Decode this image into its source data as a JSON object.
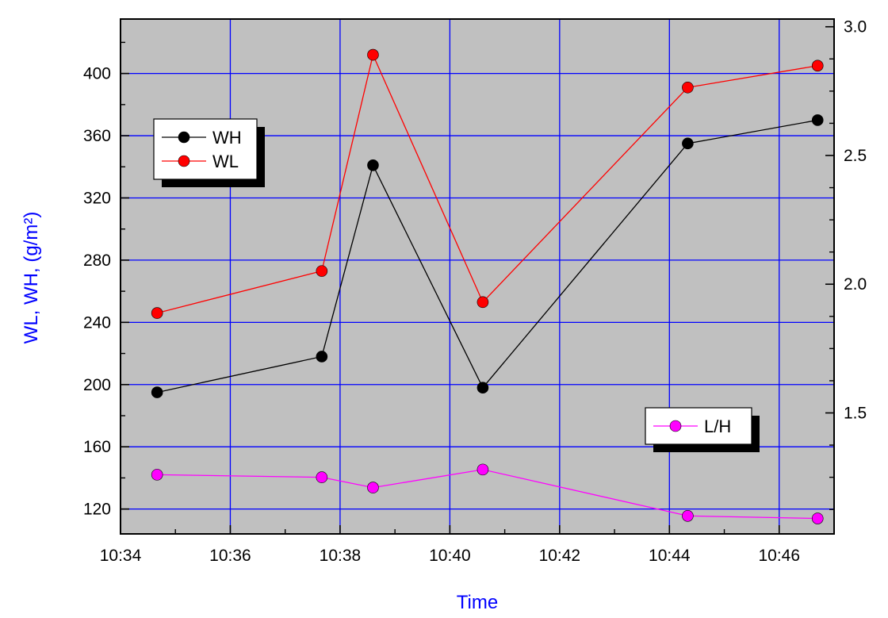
{
  "chart_data": {
    "type": "line",
    "title": "",
    "xlabel": "Time",
    "ylabel": "WL, WH, (g/m²)",
    "y2label": "",
    "x_ticks": [
      "10:34",
      "10:36",
      "10:38",
      "10:40",
      "10:42",
      "10:44",
      "10:46"
    ],
    "y_ticks": [
      "120",
      "160",
      "200",
      "240",
      "280",
      "320",
      "360",
      "400"
    ],
    "y2_ticks": [
      "1.5",
      "2.0",
      "2.5",
      "3.0"
    ],
    "xlim": [
      "10:34",
      "10:47"
    ],
    "ylim": [
      104,
      435
    ],
    "y2lim": [
      1.03,
      3.03
    ],
    "grid": true,
    "series": [
      {
        "name": "WH",
        "axis": "left",
        "color": "#000000",
        "marker_color": "#000000",
        "x": [
          "10:34:40",
          "10:37:40",
          "10:38:36",
          "10:40:36",
          "10:44:20",
          "10:46:42"
        ],
        "values": [
          195,
          218,
          341,
          198,
          355,
          370
        ]
      },
      {
        "name": "WL",
        "axis": "left",
        "color": "#ff0000",
        "marker_color": "#ff0000",
        "x": [
          "10:34:40",
          "10:37:40",
          "10:38:36",
          "10:40:36",
          "10:44:20",
          "10:46:42"
        ],
        "values": [
          246,
          273,
          412,
          253,
          391,
          405
        ]
      },
      {
        "name": "L/H",
        "axis": "right",
        "color": "#ff00ff",
        "marker_color": "#ff00ff",
        "x": [
          "10:34:40",
          "10:37:40",
          "10:38:36",
          "10:40:36",
          "10:44:20",
          "10:46:42"
        ],
        "values": [
          1.26,
          1.25,
          1.21,
          1.28,
          1.1,
          1.09
        ]
      }
    ],
    "legends": [
      {
        "placement": "upper-left",
        "entries": [
          "WH",
          "WL"
        ]
      },
      {
        "placement": "lower-right",
        "entries": [
          "L/H"
        ]
      }
    ],
    "colors": {
      "plot_background": "#c0c0c0",
      "grid": "#0000ff",
      "axis_title": "#0000ff"
    }
  }
}
